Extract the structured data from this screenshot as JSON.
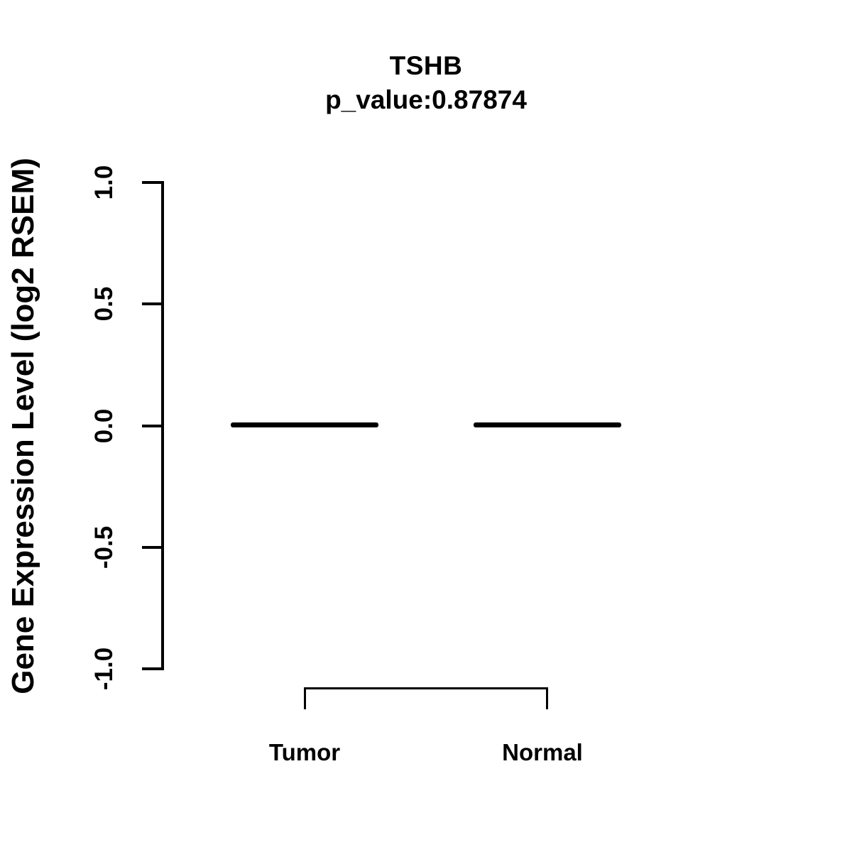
{
  "chart_data": {
    "type": "boxplot",
    "title": "TSHB",
    "subtitle": "p_value:0.87874",
    "gene": "TSHB",
    "p_value": 0.87874,
    "ylabel": "Gene Expression Level (log2 RSEM)",
    "xlabel": "",
    "categories": [
      "Tumor",
      "Normal"
    ],
    "yticks": [
      "1.0",
      "0.5",
      "0.0",
      "-0.5",
      "-1.0"
    ],
    "ylim": [
      -1.0,
      1.0
    ],
    "grid": false,
    "legend_position": "none",
    "series": [
      {
        "name": "Tumor",
        "median": 0.0,
        "q1": 0.0,
        "q3": 0.0,
        "whisker_low": 0.0,
        "whisker_high": 0.0
      },
      {
        "name": "Normal",
        "median": 0.0,
        "q1": 0.0,
        "q3": 0.0,
        "whisker_low": 0.0,
        "whisker_high": 0.0
      }
    ],
    "annotations": {
      "comparison_bracket": [
        "Tumor",
        "Normal"
      ]
    },
    "colors": {
      "foreground": "#000000",
      "background": "#ffffff"
    }
  }
}
